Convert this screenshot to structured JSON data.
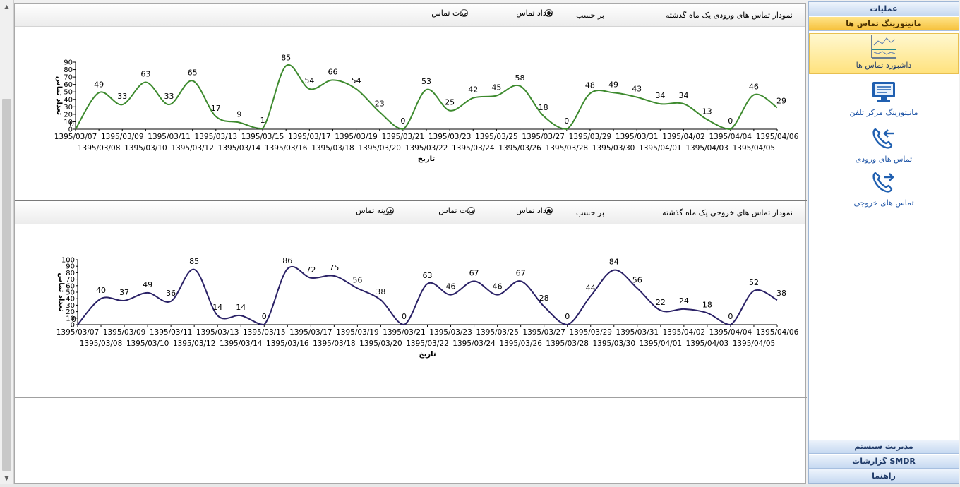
{
  "sidebar": {
    "top_header": "عملیات",
    "active_header": "مانیتورینگ تماس ها",
    "items": [
      {
        "label": "داشبورد تماس ها",
        "icon": "dashboard-chart-icon",
        "selected": true
      },
      {
        "label": "مانیتورینگ مرکز تلفن",
        "icon": "monitor-icon",
        "selected": false
      },
      {
        "label": "تماس های ورودی",
        "icon": "incoming-call-icon",
        "selected": false
      },
      {
        "label": "تماس های خروجی",
        "icon": "outgoing-call-icon",
        "selected": false
      }
    ],
    "bottom_headers": [
      "مدیریت سیستم",
      "گزارشات SMDR",
      "راهنما"
    ]
  },
  "panels": [
    {
      "title": "نمودار تماس های ورودی یک ماه گذشته",
      "by_label": "بر حسب",
      "options": [
        {
          "label": "تعداد تماس",
          "checked": true
        },
        {
          "label": "مدت تماس",
          "checked": false
        }
      ]
    },
    {
      "title": "نمودار تماس های خروجی یک ماه گذشته",
      "by_label": "بر حسب",
      "options": [
        {
          "label": "تعداد تماس",
          "checked": true
        },
        {
          "label": "مدت تماس",
          "checked": false
        },
        {
          "label": "هزینه تماس",
          "checked": false
        }
      ]
    }
  ],
  "chart_data": [
    {
      "type": "line",
      "xlabel": "تاریخ",
      "ylabel": "تعداد تماس",
      "ylim": [
        0,
        90
      ],
      "yticks": [
        0,
        10,
        20,
        30,
        40,
        50,
        60,
        70,
        80,
        90
      ],
      "color": "#3d8a2e",
      "x": [
        "1395/03/07",
        "1395/03/08",
        "1395/03/09",
        "1395/03/10",
        "1395/03/11",
        "1395/03/12",
        "1395/03/13",
        "1395/03/14",
        "1395/03/15",
        "1395/03/16",
        "1395/03/17",
        "1395/03/18",
        "1395/03/19",
        "1395/03/20",
        "1395/03/21",
        "1395/03/22",
        "1395/03/23",
        "1395/03/24",
        "1395/03/25",
        "1395/03/26",
        "1395/03/27",
        "1395/03/28",
        "1395/03/29",
        "1395/03/30",
        "1395/03/31",
        "1395/04/01",
        "1395/04/02",
        "1395/04/03",
        "1395/04/04",
        "1395/04/05",
        "1395/04/06"
      ],
      "values": [
        0,
        49,
        33,
        63,
        33,
        65,
        17,
        9,
        1,
        85,
        54,
        66,
        54,
        23,
        0,
        53,
        25,
        42,
        45,
        58,
        18,
        0,
        48,
        49,
        43,
        34,
        34,
        13,
        0,
        46,
        29
      ]
    },
    {
      "type": "line",
      "xlabel": "تاریخ",
      "ylabel": "تعداد تماس",
      "ylim": [
        0,
        100
      ],
      "yticks": [
        0,
        10,
        20,
        30,
        40,
        50,
        60,
        70,
        80,
        90,
        100
      ],
      "color": "#2a2166",
      "x": [
        "1395/03/07",
        "1395/03/08",
        "1395/03/09",
        "1395/03/10",
        "1395/03/11",
        "1395/03/12",
        "1395/03/13",
        "1395/03/14",
        "1395/03/15",
        "1395/03/16",
        "1395/03/17",
        "1395/03/18",
        "1395/03/19",
        "1395/03/20",
        "1395/03/21",
        "1395/03/22",
        "1395/03/23",
        "1395/03/24",
        "1395/03/25",
        "1395/03/26",
        "1395/03/27",
        "1395/03/28",
        "1395/03/29",
        "1395/03/30",
        "1395/03/31",
        "1395/04/01",
        "1395/04/02",
        "1395/04/03",
        "1395/04/04",
        "1395/04/05",
        "1395/04/06"
      ],
      "values": [
        0,
        40,
        37,
        49,
        36,
        85,
        14,
        14,
        0,
        86,
        72,
        75,
        56,
        38,
        0,
        63,
        46,
        67,
        46,
        67,
        28,
        0,
        44,
        84,
        56,
        22,
        24,
        18,
        0,
        52,
        38
      ]
    }
  ]
}
